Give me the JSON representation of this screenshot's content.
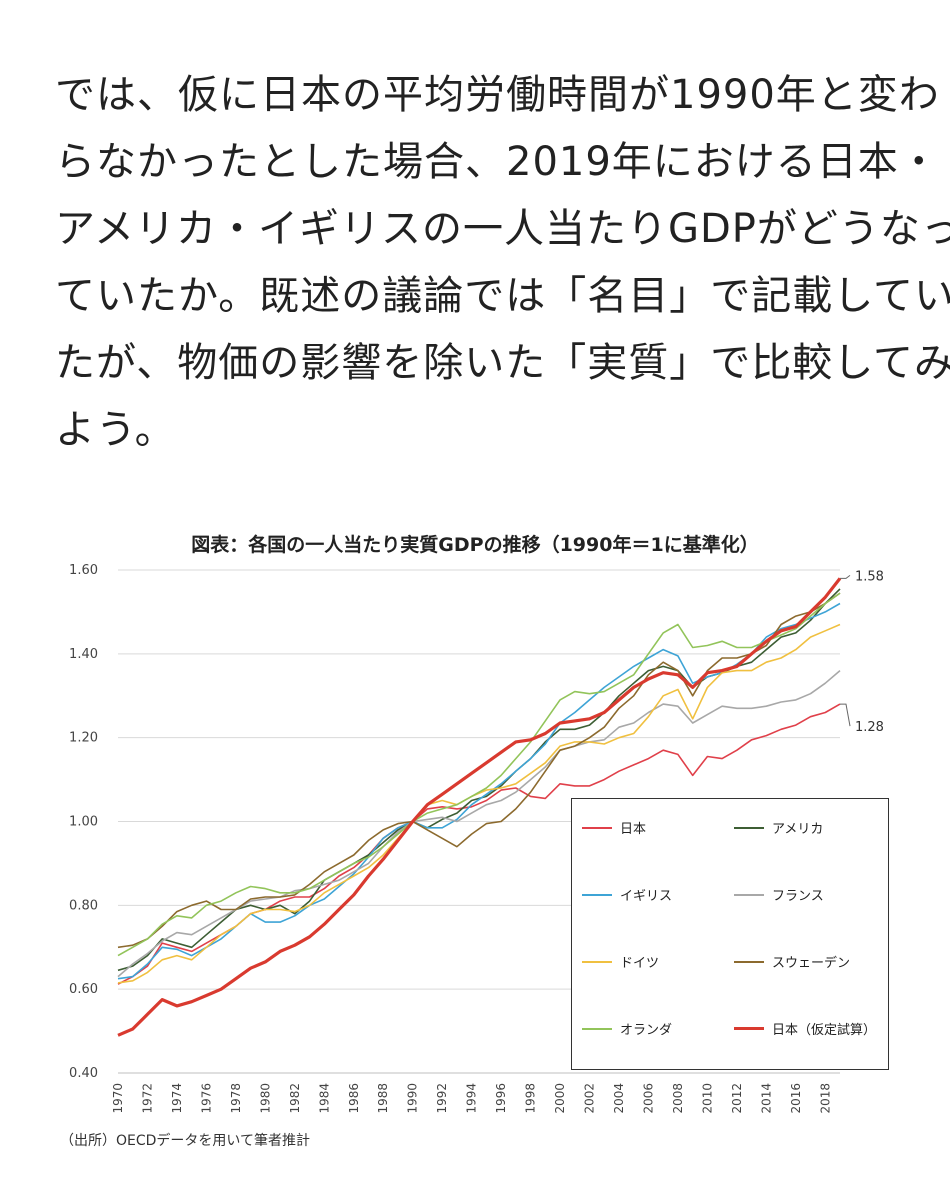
{
  "paragraph": {
    "lines": [
      "では、仮に日本の平均労働時間が1990年と変わ",
      "らなかったとした場合、2019年における日本・",
      "アメリカ・イギリスの一人当たりGDPがどうなっ",
      "ていたか。既述の議論では「名目」で記載してい",
      "たが、物価の影響を除いた「実質」で比較してみ",
      "よう。"
    ]
  },
  "source": "（出所）OECDデータを用いて筆者推計",
  "chart_data": {
    "type": "line",
    "title": "図表：各国の一人当たり実質GDPの推移（1990年＝1に基準化）",
    "xlabel": "",
    "ylabel": "",
    "ylim": [
      0.4,
      1.6
    ],
    "yticks": [
      "0.40",
      "0.60",
      "0.80",
      "1.00",
      "1.20",
      "1.40",
      "1.60"
    ],
    "xtick_labels": [
      "1970",
      "1972",
      "1974",
      "1976",
      "1978",
      "1980",
      "1982",
      "1984",
      "1986",
      "1988",
      "1990",
      "1992",
      "1994",
      "1996",
      "1998",
      "2000",
      "2002",
      "2004",
      "2006",
      "2008",
      "2010",
      "2012",
      "2014",
      "2016",
      "2018"
    ],
    "grid": "horizontal",
    "legend_position": "lower-right",
    "x": [
      1970,
      1971,
      1972,
      1973,
      1974,
      1975,
      1976,
      1977,
      1978,
      1979,
      1980,
      1981,
      1982,
      1983,
      1984,
      1985,
      1986,
      1987,
      1988,
      1989,
      1990,
      1991,
      1992,
      1993,
      1994,
      1995,
      1996,
      1997,
      1998,
      1999,
      2000,
      2001,
      2002,
      2003,
      2004,
      2005,
      2006,
      2007,
      2008,
      2009,
      2010,
      2011,
      2012,
      2013,
      2014,
      2015,
      2016,
      2017,
      2018,
      2019
    ],
    "annotations": [
      {
        "text": "1.58",
        "x": 2019,
        "y": 1.58
      },
      {
        "text": "1.28",
        "x": 2019,
        "y": 1.28
      }
    ],
    "series": [
      {
        "name": "日本",
        "color": "#e0404a",
        "width": 1.6,
        "values": [
          0.612,
          0.63,
          0.655,
          0.71,
          0.7,
          0.69,
          0.71,
          0.73,
          0.75,
          0.78,
          0.79,
          0.81,
          0.82,
          0.82,
          0.84,
          0.87,
          0.89,
          0.92,
          0.96,
          0.985,
          1.0,
          1.03,
          1.035,
          1.03,
          1.035,
          1.05,
          1.075,
          1.08,
          1.06,
          1.055,
          1.09,
          1.085,
          1.085,
          1.1,
          1.12,
          1.135,
          1.15,
          1.17,
          1.16,
          1.11,
          1.155,
          1.15,
          1.17,
          1.195,
          1.205,
          1.22,
          1.23,
          1.25,
          1.26,
          1.28
        ]
      },
      {
        "name": "アメリカ",
        "color": "#3d5e34",
        "width": 1.6,
        "values": [
          0.645,
          0.655,
          0.68,
          0.72,
          0.71,
          0.7,
          0.73,
          0.76,
          0.79,
          0.8,
          0.79,
          0.8,
          0.78,
          0.81,
          0.86,
          0.88,
          0.9,
          0.92,
          0.95,
          0.98,
          1.0,
          0.985,
          1.005,
          1.02,
          1.05,
          1.06,
          1.085,
          1.12,
          1.15,
          1.19,
          1.22,
          1.22,
          1.23,
          1.26,
          1.3,
          1.33,
          1.36,
          1.37,
          1.36,
          1.32,
          1.345,
          1.355,
          1.37,
          1.38,
          1.41,
          1.44,
          1.45,
          1.48,
          1.52,
          1.555
        ]
      },
      {
        "name": "イギリス",
        "color": "#3ea4d6",
        "width": 1.6,
        "values": [
          0.625,
          0.63,
          0.66,
          0.7,
          0.695,
          0.68,
          0.7,
          0.72,
          0.75,
          0.78,
          0.76,
          0.76,
          0.775,
          0.8,
          0.815,
          0.845,
          0.875,
          0.915,
          0.96,
          0.985,
          1.0,
          0.985,
          0.985,
          1.005,
          1.04,
          1.065,
          1.09,
          1.12,
          1.15,
          1.185,
          1.235,
          1.26,
          1.29,
          1.32,
          1.345,
          1.37,
          1.39,
          1.41,
          1.395,
          1.33,
          1.345,
          1.355,
          1.375,
          1.4,
          1.44,
          1.46,
          1.47,
          1.485,
          1.5,
          1.52
        ]
      },
      {
        "name": "フランス",
        "color": "#a8a8a8",
        "width": 1.6,
        "values": [
          0.63,
          0.66,
          0.685,
          0.715,
          0.735,
          0.73,
          0.75,
          0.77,
          0.79,
          0.81,
          0.815,
          0.82,
          0.835,
          0.84,
          0.85,
          0.86,
          0.88,
          0.9,
          0.94,
          0.975,
          1.0,
          1.005,
          1.01,
          1.0,
          1.02,
          1.04,
          1.05,
          1.07,
          1.1,
          1.13,
          1.17,
          1.18,
          1.19,
          1.195,
          1.225,
          1.235,
          1.26,
          1.28,
          1.275,
          1.235,
          1.255,
          1.275,
          1.27,
          1.27,
          1.275,
          1.285,
          1.29,
          1.305,
          1.33,
          1.36
        ]
      },
      {
        "name": "ドイツ",
        "color": "#f0c040",
        "width": 1.6,
        "values": [
          0.615,
          0.62,
          0.64,
          0.67,
          0.68,
          0.67,
          0.7,
          0.73,
          0.75,
          0.78,
          0.79,
          0.79,
          0.785,
          0.8,
          0.83,
          0.85,
          0.87,
          0.89,
          0.92,
          0.96,
          1.0,
          1.04,
          1.05,
          1.04,
          1.06,
          1.075,
          1.08,
          1.09,
          1.115,
          1.14,
          1.18,
          1.19,
          1.19,
          1.185,
          1.2,
          1.21,
          1.25,
          1.3,
          1.315,
          1.245,
          1.32,
          1.355,
          1.36,
          1.36,
          1.38,
          1.39,
          1.41,
          1.44,
          1.455,
          1.47
        ]
      },
      {
        "name": "スウェーデン",
        "color": "#8c6a2e",
        "width": 1.6,
        "values": [
          0.7,
          0.705,
          0.72,
          0.75,
          0.785,
          0.8,
          0.81,
          0.79,
          0.79,
          0.815,
          0.82,
          0.82,
          0.825,
          0.85,
          0.88,
          0.9,
          0.92,
          0.955,
          0.98,
          0.995,
          1.0,
          0.98,
          0.96,
          0.94,
          0.97,
          0.995,
          1.0,
          1.03,
          1.07,
          1.12,
          1.17,
          1.18,
          1.2,
          1.225,
          1.27,
          1.3,
          1.35,
          1.38,
          1.36,
          1.3,
          1.36,
          1.39,
          1.39,
          1.4,
          1.42,
          1.47,
          1.49,
          1.5,
          1.52,
          1.545
        ]
      },
      {
        "name": "オランダ",
        "color": "#92c45a",
        "width": 1.6,
        "values": [
          0.68,
          0.7,
          0.72,
          0.755,
          0.775,
          0.77,
          0.8,
          0.81,
          0.83,
          0.845,
          0.84,
          0.83,
          0.83,
          0.84,
          0.86,
          0.88,
          0.9,
          0.915,
          0.94,
          0.97,
          1.0,
          1.02,
          1.03,
          1.04,
          1.06,
          1.08,
          1.11,
          1.15,
          1.19,
          1.24,
          1.29,
          1.31,
          1.305,
          1.31,
          1.33,
          1.35,
          1.4,
          1.45,
          1.47,
          1.415,
          1.42,
          1.43,
          1.415,
          1.415,
          1.43,
          1.445,
          1.46,
          1.49,
          1.52,
          1.545
        ]
      },
      {
        "name": "日本（仮定試算）",
        "color": "#d93a2f",
        "width": 3.2,
        "values": [
          0.49,
          0.505,
          0.54,
          0.575,
          0.56,
          0.57,
          0.585,
          0.6,
          0.625,
          0.65,
          0.665,
          0.69,
          0.705,
          0.725,
          0.755,
          0.79,
          0.825,
          0.87,
          0.91,
          0.955,
          1.0,
          1.04,
          1.065,
          1.09,
          1.115,
          1.14,
          1.165,
          1.19,
          1.195,
          1.21,
          1.235,
          1.24,
          1.245,
          1.26,
          1.29,
          1.32,
          1.34,
          1.355,
          1.35,
          1.32,
          1.355,
          1.36,
          1.37,
          1.4,
          1.43,
          1.455,
          1.465,
          1.5,
          1.535,
          1.58
        ]
      }
    ]
  }
}
